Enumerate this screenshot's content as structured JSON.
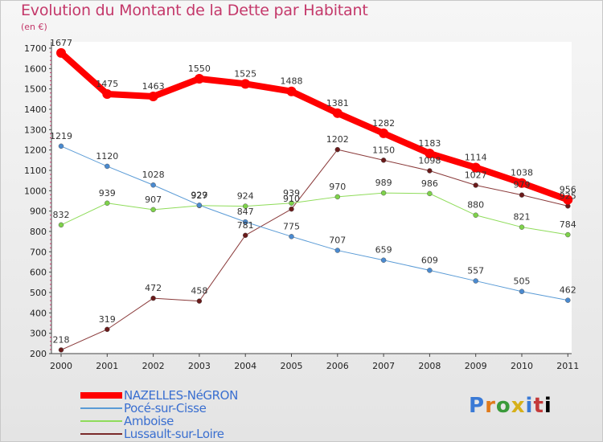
{
  "title": "Evolution du Montant de la Dette par Habitant",
  "unit_label": "(en €)",
  "logo_text": "Proxiti",
  "chart_data": {
    "type": "line",
    "title": "Evolution du Montant de la Dette par Habitant",
    "ylabel": "(en €)",
    "xlabel": "",
    "x": [
      "2000",
      "2001",
      "2002",
      "2003",
      "2004",
      "2005",
      "2006",
      "2007",
      "2008",
      "2009",
      "2010",
      "2011"
    ],
    "ylim": [
      200,
      1700
    ],
    "yticks": [
      200,
      300,
      400,
      500,
      600,
      700,
      800,
      900,
      1000,
      1100,
      1200,
      1300,
      1400,
      1500,
      1600,
      1700
    ],
    "grid": false,
    "legend_position": "bottom-left",
    "series": [
      {
        "name": "NAZELLES-NéGRON",
        "color": "#ff0000",
        "values": [
          1677,
          1475,
          1463,
          1550,
          1525,
          1488,
          1381,
          1282,
          1183,
          1114,
          1038,
          956
        ]
      },
      {
        "name": "Pocé-sur-Cisse",
        "color": "#5a9bd6",
        "values": [
          1219,
          1120,
          1028,
          929,
          847,
          775,
          707,
          659,
          609,
          557,
          505,
          462
        ]
      },
      {
        "name": "Amboise",
        "color": "#8fdc5a",
        "values": [
          832,
          939,
          907,
          927,
          924,
          939,
          970,
          989,
          986,
          880,
          821,
          784
        ]
      },
      {
        "name": "Lussault-sur-Loire",
        "color": "#7a2a2a",
        "values": [
          218,
          319,
          472,
          458,
          781,
          910,
          1202,
          1150,
          1098,
          1027,
          979,
          925
        ]
      }
    ]
  }
}
